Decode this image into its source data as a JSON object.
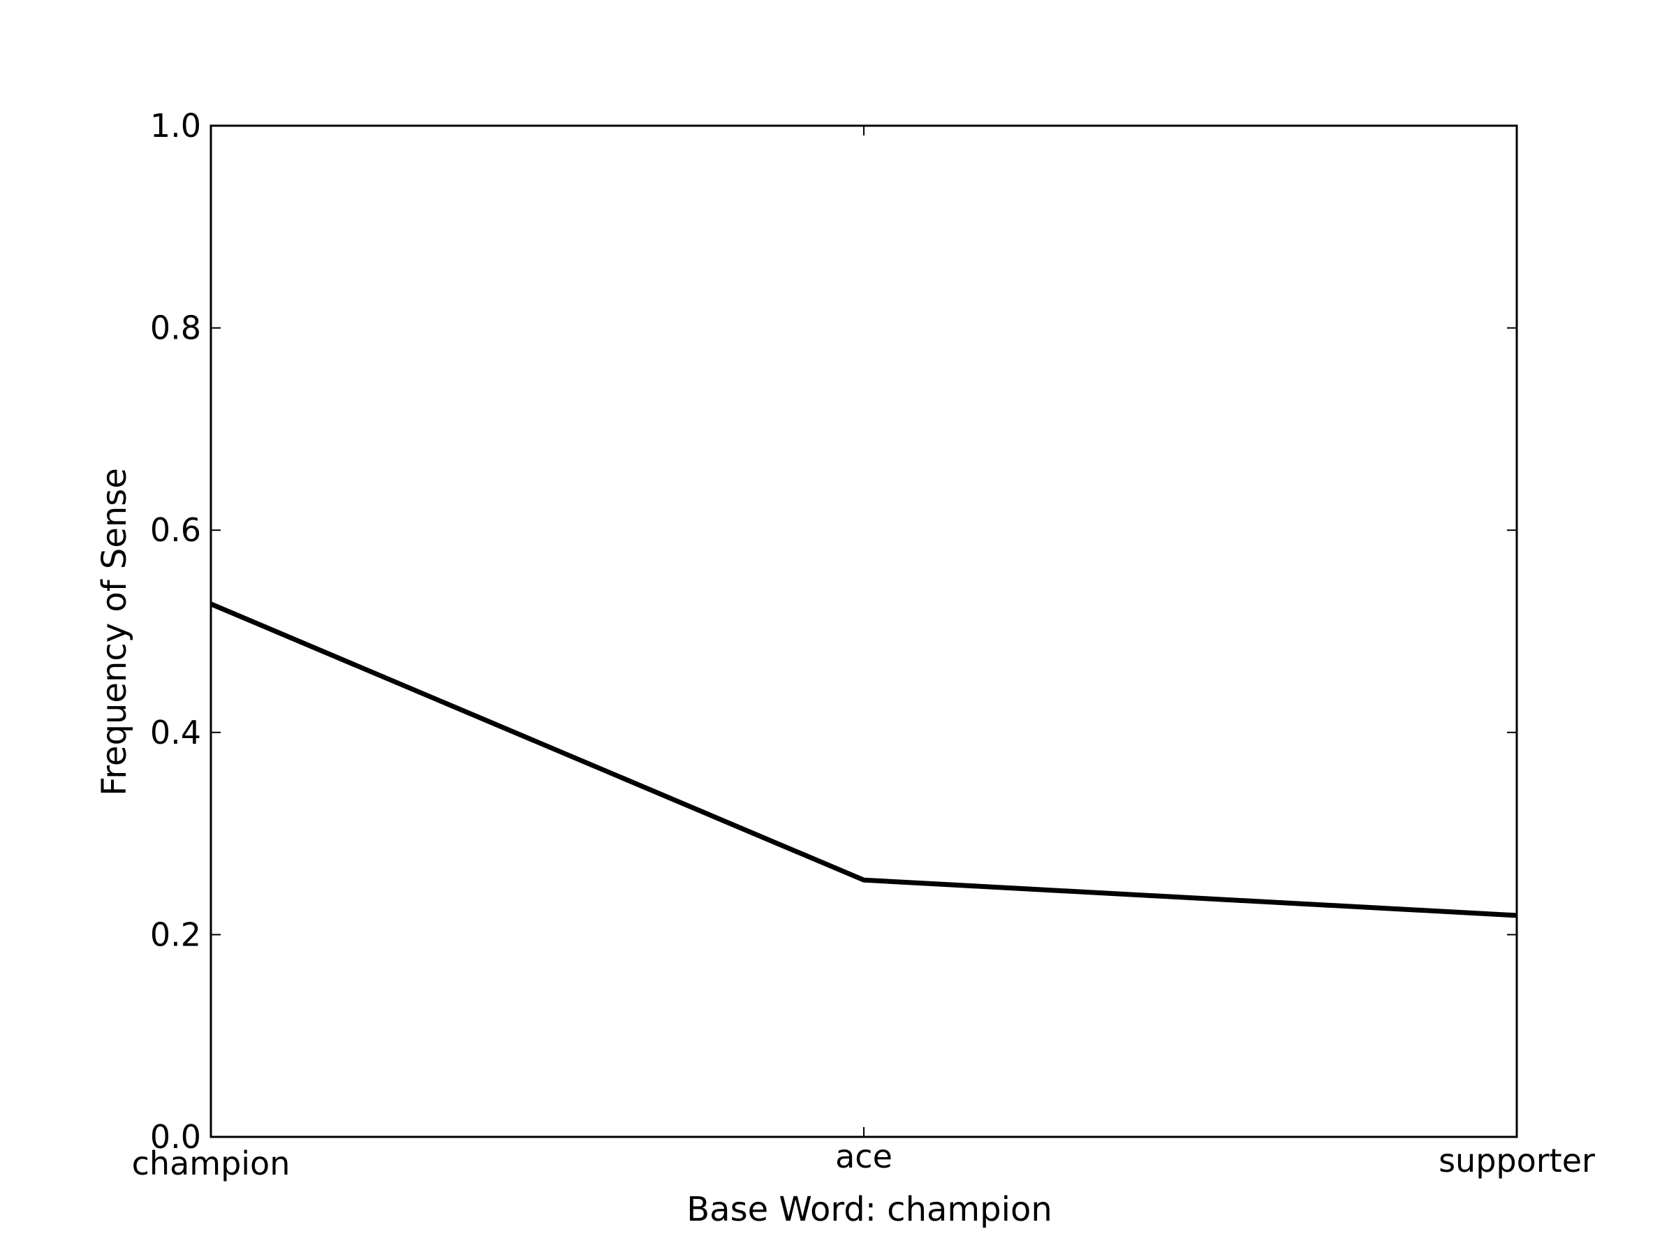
{
  "chart_data": {
    "type": "line",
    "title": "",
    "xlabel": "Base Word: champion",
    "ylabel": "Frequency of Sense",
    "categories": [
      "champion",
      "ace",
      "supporter"
    ],
    "series": [
      {
        "values": [
          0.527,
          0.254,
          0.219
        ]
      }
    ],
    "ylim": [
      0.0,
      1.0
    ],
    "yticks": [
      "0.0",
      "0.2",
      "0.4",
      "0.6",
      "0.8",
      "1.0"
    ],
    "grid": false,
    "legend": "none",
    "colors": {
      "line": "#000000",
      "axes": "#000000",
      "background": "#ffffff"
    }
  }
}
